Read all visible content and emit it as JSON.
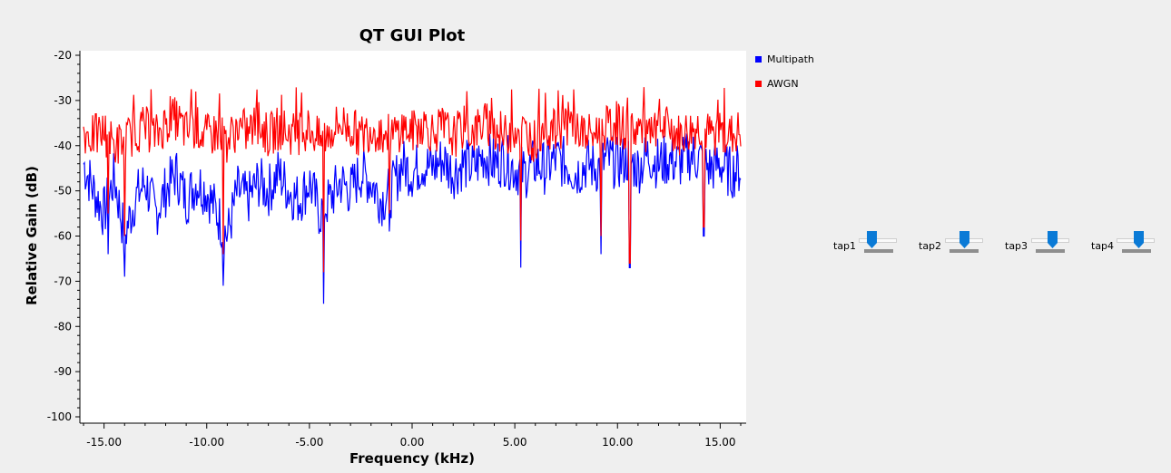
{
  "chart_data": {
    "type": "line",
    "title": "QT GUI Plot",
    "xlabel": "Frequency (kHz)",
    "ylabel": "Relative Gain (dB)",
    "xlim": [
      -16,
      16
    ],
    "ylim": [
      -100,
      -20
    ],
    "xticks": [
      -15,
      -10,
      -5,
      0,
      5,
      10,
      15
    ],
    "xtick_labels": [
      "-15.00",
      "-10.00",
      "-5.00",
      "0.00",
      "5.00",
      "10.00",
      "15.00"
    ],
    "yticks": [
      -20,
      -30,
      -40,
      -50,
      -60,
      -70,
      -80,
      -90,
      -100
    ],
    "ytick_labels": [
      "-20",
      "-30",
      "-40",
      "-50",
      "-60",
      "-70",
      "-80",
      "-90",
      "-100"
    ],
    "series": [
      {
        "name": "Multipath",
        "color": "#0000ff",
        "x": [
          -16,
          -15.5,
          -15,
          -14.5,
          -14,
          -13.5,
          -13,
          -12.5,
          -12,
          -11.5,
          -11,
          -10.5,
          -10,
          -9.5,
          -9,
          -8.5,
          -8,
          -7.5,
          -7,
          -6.5,
          -6,
          -5.5,
          -5,
          -4.5,
          -4,
          -3.5,
          -3,
          -2.5,
          -2,
          -1.5,
          -1,
          -0.5,
          0,
          0.5,
          1,
          1.5,
          2,
          2.5,
          3,
          3.5,
          4,
          4.5,
          5,
          5.5,
          6,
          6.5,
          7,
          7.5,
          8,
          8.5,
          9,
          9.5,
          10,
          10.5,
          11,
          11.5,
          12,
          12.5,
          13,
          13.5,
          14,
          14.5,
          15,
          15.5,
          16
        ],
        "y": [
          -44,
          -50,
          -55,
          -47,
          -60,
          -52,
          -48,
          -55,
          -50,
          -46,
          -52,
          -48,
          -50,
          -55,
          -60,
          -50,
          -52,
          -48,
          -50,
          -46,
          -50,
          -52,
          -48,
          -55,
          -52,
          -48,
          -50,
          -46,
          -48,
          -52,
          -50,
          -44,
          -46,
          -44,
          -45,
          -43,
          -46,
          -44,
          -45,
          -42,
          -44,
          -43,
          -45,
          -46,
          -44,
          -45,
          -43,
          -44,
          -46,
          -44,
          -45,
          -43,
          -44,
          -43,
          -45,
          -42,
          -44,
          -43,
          -44,
          -42,
          -43,
          -45,
          -44,
          -46,
          -45
        ]
      },
      {
        "name": "AWGN",
        "color": "#ff0000",
        "x": [
          -16,
          -15.5,
          -15,
          -14.5,
          -14,
          -13.5,
          -13,
          -12.5,
          -12,
          -11.5,
          -11,
          -10.5,
          -10,
          -9.5,
          -9,
          -8.5,
          -8,
          -7.5,
          -7,
          -6.5,
          -6,
          -5.5,
          -5,
          -4.5,
          -4,
          -3.5,
          -3,
          -2.5,
          -2,
          -1.5,
          -1,
          -0.5,
          0,
          0.5,
          1,
          1.5,
          2,
          2.5,
          3,
          3.5,
          4,
          4.5,
          5,
          5.5,
          6,
          6.5,
          7,
          7.5,
          8,
          8.5,
          9,
          9.5,
          10,
          10.5,
          11,
          11.5,
          12,
          12.5,
          13,
          13.5,
          14,
          14.5,
          15,
          15.5,
          16
        ],
        "y": [
          -37,
          -38,
          -37,
          -40,
          -39,
          -37,
          -36,
          -38,
          -35,
          -34,
          -37,
          -36,
          -38,
          -37,
          -39,
          -36,
          -37,
          -35,
          -38,
          -36,
          -37,
          -38,
          -36,
          -39,
          -37,
          -35,
          -36,
          -38,
          -36,
          -37,
          -38,
          -36,
          -37,
          -35,
          -37,
          -36,
          -38,
          -36,
          -37,
          -35,
          -36,
          -38,
          -36,
          -37,
          -39,
          -36,
          -37,
          -35,
          -36,
          -38,
          -37,
          -36,
          -35,
          -37,
          -36,
          -38,
          -37,
          -36,
          -38,
          -37,
          -36,
          -38,
          -37,
          -38,
          -37
        ]
      }
    ],
    "dips": [
      {
        "x": -14.8,
        "multipath": -64,
        "awgn": -55
      },
      {
        "x": -14.0,
        "multipath": -69,
        "awgn": -60
      },
      {
        "x": -9.2,
        "multipath": -71,
        "awgn": -64
      },
      {
        "x": -4.3,
        "multipath": -75,
        "awgn": -68
      },
      {
        "x": -1.1,
        "multipath": -59,
        "awgn": -55
      },
      {
        "x": 5.3,
        "multipath": -67,
        "awgn": -61
      },
      {
        "x": 9.2,
        "multipath": -64,
        "awgn": -60
      },
      {
        "x": 10.6,
        "multipath": -67,
        "awgn": -66
      },
      {
        "x": 14.2,
        "multipath": -60,
        "awgn": -58
      }
    ],
    "legend_position": "right"
  },
  "sliders": [
    {
      "label": "tap1"
    },
    {
      "label": "tap2"
    },
    {
      "label": "tap3"
    },
    {
      "label": "tap4"
    }
  ]
}
